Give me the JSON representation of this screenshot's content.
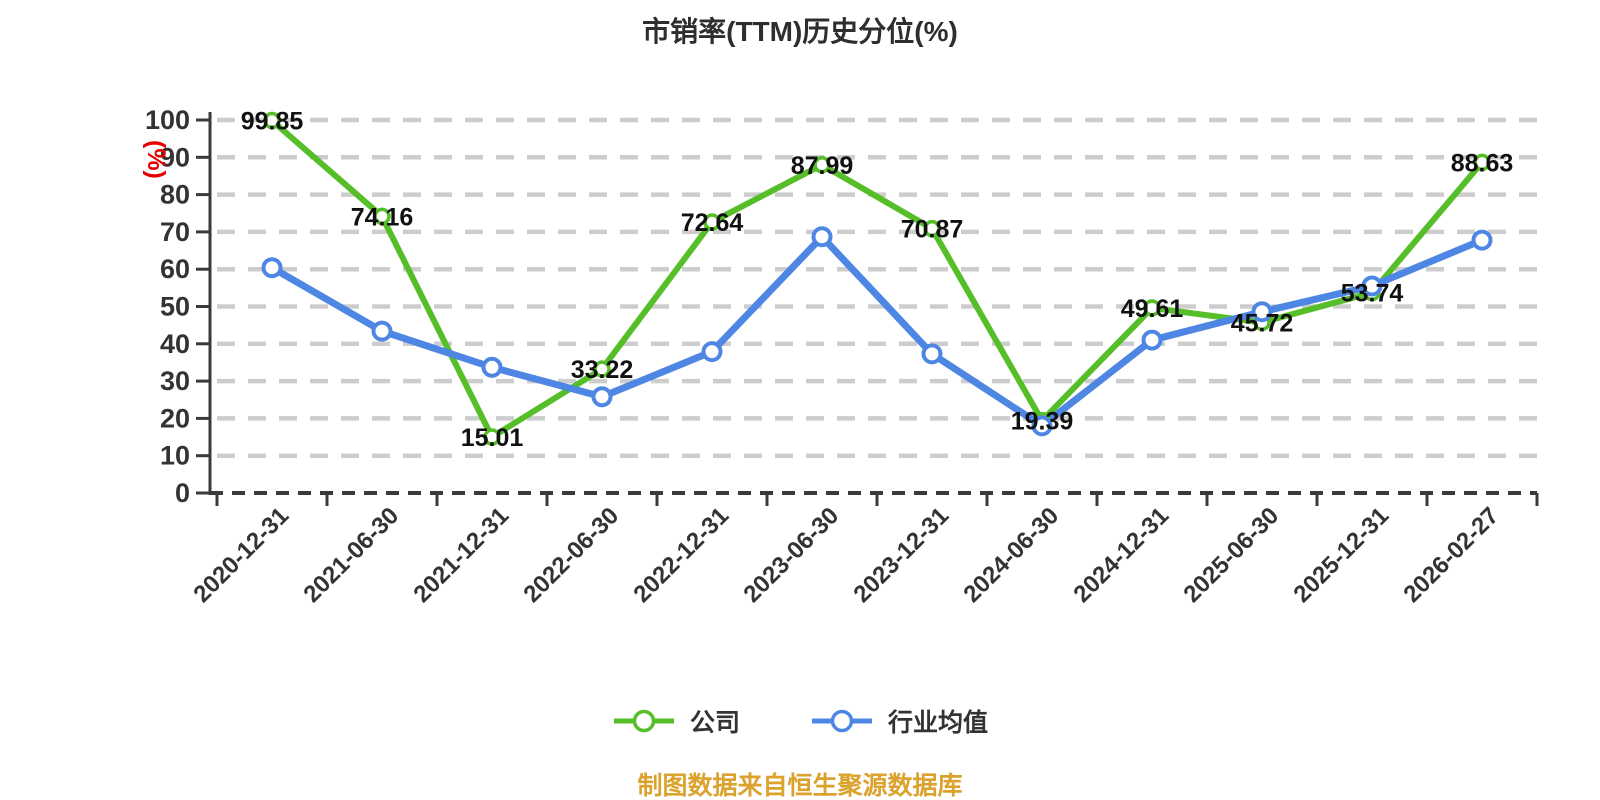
{
  "title": "市销率(TTM)历史分位(%)",
  "y_axis_unit": "(%)",
  "footer": "制图数据来自恒生聚源数据库",
  "legend": [
    {
      "label": "公司",
      "color": "#56be28"
    },
    {
      "label": "行业均值",
      "color": "#4e86e4"
    }
  ],
  "colors": {
    "company_line": "#56be28",
    "industry_line": "#4e86e4",
    "grid": "#cdcdcd",
    "axis": "#3a3a3a",
    "tick_text": "#333333",
    "title_text": "#2e2e2e",
    "data_label": "#111111",
    "y_unit_red": "#e60000",
    "footer_orange": "#dba22e"
  },
  "chart_data": {
    "type": "line",
    "title": "市销率(TTM)历史分位(%)",
    "xlabel": "",
    "ylabel": "(%)",
    "ylim": [
      0,
      100
    ],
    "y_ticks": [
      0,
      10,
      20,
      30,
      40,
      50,
      60,
      70,
      80,
      90,
      100
    ],
    "grid": "horizontal dashed",
    "legend_position": "bottom",
    "categories": [
      "2020-12-31",
      "2021-06-30",
      "2021-12-31",
      "2022-06-30",
      "2022-12-31",
      "2023-06-30",
      "2023-12-31",
      "2024-06-30",
      "2024-12-31",
      "2025-06-30",
      "2025-12-31",
      "2026-02-27"
    ],
    "series": [
      {
        "name": "公司",
        "color": "#56be28",
        "labels_shown": true,
        "values": [
          99.85,
          74.16,
          15.01,
          33.22,
          72.64,
          87.99,
          70.87,
          19.39,
          49.61,
          45.72,
          53.74,
          88.63
        ]
      },
      {
        "name": "行业均值",
        "color": "#4e86e4",
        "labels_shown": false,
        "values": [
          60.4,
          43.4,
          33.7,
          25.8,
          37.9,
          68.7,
          37.3,
          18.0,
          41.0,
          48.6,
          55.5,
          67.8
        ]
      }
    ]
  }
}
